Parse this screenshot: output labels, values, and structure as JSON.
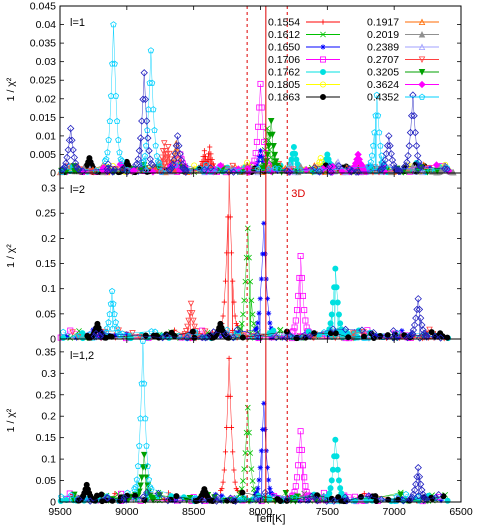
{
  "chart_data": [
    {
      "type": "scatter",
      "panel_label": "l=1",
      "ylabel": "1 / χ²",
      "ylim": [
        0,
        0.045
      ],
      "yticks": [
        0,
        0.005,
        0.01,
        0.015,
        0.02,
        0.025,
        0.03,
        0.035,
        0.04,
        0.045
      ],
      "ytick_labels": [
        "0",
        "0.005",
        "0.01",
        "0.015",
        "0.02",
        "0.025",
        "0.03",
        "0.035",
        "0.04",
        "0.045"
      ],
      "annotation": "",
      "series": [
        {
          "name": "0.1554",
          "color": "#ff0000",
          "marker": "plus",
          "peaks": [
            {
              "x": 8420,
              "y": 0.006
            },
            {
              "x": 8380,
              "y": 0.007
            }
          ]
        },
        {
          "name": "0.1612",
          "color": "#00c000",
          "marker": "x",
          "peaks": [
            {
              "x": 7950,
              "y": 0.012
            }
          ]
        },
        {
          "name": "0.1650",
          "color": "#0000ff",
          "marker": "star",
          "peaks": [
            {
              "x": 8000,
              "y": 0.006
            }
          ]
        },
        {
          "name": "0.1706",
          "color": "#ff00ff",
          "marker": "square",
          "peaks": [
            {
              "x": 8000,
              "y": 0.024
            },
            {
              "x": 8600,
              "y": 0.005
            }
          ]
        },
        {
          "name": "0.1762",
          "color": "#00e0e0",
          "marker": "circle-filled",
          "peaks": [
            {
              "x": 7750,
              "y": 0.007
            },
            {
              "x": 7500,
              "y": 0.005
            }
          ]
        },
        {
          "name": "0.1805",
          "color": "#ffff00",
          "marker": "circle",
          "peaks": [
            {
              "x": 7550,
              "y": 0.004
            }
          ]
        },
        {
          "name": "0.1863",
          "color": "#000000",
          "marker": "circle-filled",
          "peaks": [
            {
              "x": 9280,
              "y": 0.004
            },
            {
              "x": 9000,
              "y": 0.003
            }
          ]
        },
        {
          "name": "0.1917",
          "color": "#ff6a00",
          "marker": "triangle",
          "peaks": [
            {
              "x": 8630,
              "y": 0.008
            }
          ]
        },
        {
          "name": "0.2019",
          "color": "#909090",
          "marker": "triangle-filled",
          "peaks": [
            {
              "x": 6620,
              "y": 0.002
            }
          ]
        },
        {
          "name": "0.2389",
          "color": "#a0a0ff",
          "marker": "triangle",
          "peaks": [
            {
              "x": 7420,
              "y": 0.003
            }
          ]
        },
        {
          "name": "0.2707",
          "color": "#ff4040",
          "marker": "triangle-down",
          "peaks": [
            {
              "x": 8720,
              "y": 0.008
            },
            {
              "x": 8690,
              "y": 0.007
            }
          ]
        },
        {
          "name": "0.3205",
          "color": "#00a000",
          "marker": "triangle-down-filled",
          "peaks": [
            {
              "x": 7920,
              "y": 0.014
            }
          ]
        },
        {
          "name": "0.3624",
          "color": "#ff00ff",
          "marker": "diamond-filled",
          "peaks": [
            {
              "x": 7270,
              "y": 0.005
            }
          ]
        },
        {
          "name": "0.4352",
          "color": "#00d0ff",
          "marker": "pentagon",
          "peaks": [
            {
              "x": 9100,
              "y": 0.04
            },
            {
              "x": 8820,
              "y": 0.033
            },
            {
              "x": 7130,
              "y": 0.021
            }
          ]
        },
        {
          "name": "",
          "color": "#2020c0",
          "marker": "diamond",
          "peaks": [
            {
              "x": 8870,
              "y": 0.027
            },
            {
              "x": 7040,
              "y": 0.01
            },
            {
              "x": 6860,
              "y": 0.021
            },
            {
              "x": 9420,
              "y": 0.012
            },
            {
              "x": 8620,
              "y": 0.01
            }
          ]
        }
      ]
    },
    {
      "type": "scatter",
      "panel_label": "l=2",
      "ylabel": "1 / χ²",
      "ylim": [
        0,
        0.33
      ],
      "yticks": [
        0,
        0.05,
        0.1,
        0.15,
        0.2,
        0.25,
        0.3
      ],
      "ytick_labels": [
        "0",
        "0.05",
        "0.1",
        "0.15",
        "0.2",
        "0.25",
        "0.3"
      ],
      "annotation": "3D",
      "series": [
        {
          "name": "0.1554",
          "color": "#ff0000",
          "marker": "plus",
          "peaks": [
            {
              "x": 8235,
              "y": 0.33
            }
          ]
        },
        {
          "name": "0.1612",
          "color": "#00c000",
          "marker": "x",
          "peaks": [
            {
              "x": 8095,
              "y": 0.22
            }
          ]
        },
        {
          "name": "0.1650",
          "color": "#0000ff",
          "marker": "star",
          "peaks": [
            {
              "x": 7975,
              "y": 0.23
            }
          ]
        },
        {
          "name": "0.1706",
          "color": "#ff00ff",
          "marker": "square",
          "peaks": [
            {
              "x": 7700,
              "y": 0.165
            }
          ]
        },
        {
          "name": "0.1762",
          "color": "#00e0e0",
          "marker": "circle-filled",
          "peaks": [
            {
              "x": 7440,
              "y": 0.14
            }
          ]
        },
        {
          "name": "0.2707",
          "color": "#ff4040",
          "marker": "triangle-down",
          "peaks": [
            {
              "x": 8520,
              "y": 0.07
            }
          ]
        },
        {
          "name": "0.4352",
          "color": "#00d0ff",
          "marker": "pentagon",
          "peaks": [
            {
              "x": 9110,
              "y": 0.095
            }
          ]
        },
        {
          "name": "0.1863",
          "color": "#000000",
          "marker": "circle-filled",
          "peaks": [
            {
              "x": 8300,
              "y": 0.03
            },
            {
              "x": 9220,
              "y": 0.03
            }
          ]
        },
        {
          "name": "",
          "color": "#2020c0",
          "marker": "diamond",
          "peaks": [
            {
              "x": 6820,
              "y": 0.08
            }
          ]
        }
      ]
    },
    {
      "type": "scatter",
      "panel_label": "l=1,2",
      "ylabel": "1 / χ²",
      "xlabel": "Teff[K]",
      "xlim": [
        9500,
        6500
      ],
      "xticks": [
        9500,
        9000,
        8500,
        8000,
        7500,
        7000,
        6500
      ],
      "xtick_labels": [
        "9500",
        "9000",
        "8500",
        "8000",
        "7500",
        "7000",
        "6500"
      ],
      "ylim": [
        0,
        0.38
      ],
      "yticks": [
        0,
        0.05,
        0.1,
        0.15,
        0.2,
        0.25,
        0.3,
        0.35
      ],
      "ytick_labels": [
        "0",
        "0.05",
        "0.1",
        "0.15",
        "0.2",
        "0.25",
        "0.3",
        "0.35"
      ],
      "annotation": "",
      "series": [
        {
          "name": "0.1554",
          "color": "#ff0000",
          "marker": "plus",
          "peaks": [
            {
              "x": 8235,
              "y": 0.335
            }
          ]
        },
        {
          "name": "0.1612",
          "color": "#00c000",
          "marker": "x",
          "peaks": [
            {
              "x": 8095,
              "y": 0.22
            }
          ]
        },
        {
          "name": "0.1650",
          "color": "#0000ff",
          "marker": "star",
          "peaks": [
            {
              "x": 7975,
              "y": 0.23
            }
          ]
        },
        {
          "name": "0.1706",
          "color": "#ff00ff",
          "marker": "square",
          "peaks": [
            {
              "x": 7700,
              "y": 0.165
            }
          ]
        },
        {
          "name": "0.1762",
          "color": "#00e0e0",
          "marker": "circle-filled",
          "peaks": [
            {
              "x": 7440,
              "y": 0.145
            }
          ]
        },
        {
          "name": "0.3205",
          "color": "#00a000",
          "marker": "triangle-down-filled",
          "peaks": [
            {
              "x": 8870,
              "y": 0.11
            }
          ]
        },
        {
          "name": "0.4352",
          "color": "#00d0ff",
          "marker": "pentagon",
          "peaks": [
            {
              "x": 8880,
              "y": 0.375
            }
          ]
        },
        {
          "name": "0.1863",
          "color": "#000000",
          "marker": "circle-filled",
          "peaks": [
            {
              "x": 9300,
              "y": 0.04
            },
            {
              "x": 8420,
              "y": 0.03
            }
          ]
        },
        {
          "name": "",
          "color": "#2020c0",
          "marker": "diamond",
          "peaks": [
            {
              "x": 6820,
              "y": 0.08
            }
          ]
        }
      ]
    }
  ],
  "reference_lines": [
    {
      "x": 7960,
      "style": "solid",
      "color": "#dd0000"
    },
    {
      "x": 8100,
      "style": "dashed",
      "color": "#dd0000"
    },
    {
      "x": 7800,
      "style": "dashed",
      "color": "#dd0000"
    }
  ],
  "legend": {
    "placement": "top-right of first panel",
    "columns": [
      [
        "0.1554",
        "0.1612",
        "0.1650",
        "0.1706",
        "0.1762",
        "0.1805",
        "0.1863"
      ],
      [
        "0.1917",
        "0.2019",
        "0.2389",
        "0.2707",
        "0.3205",
        "0.3624",
        "0.4352"
      ]
    ]
  }
}
